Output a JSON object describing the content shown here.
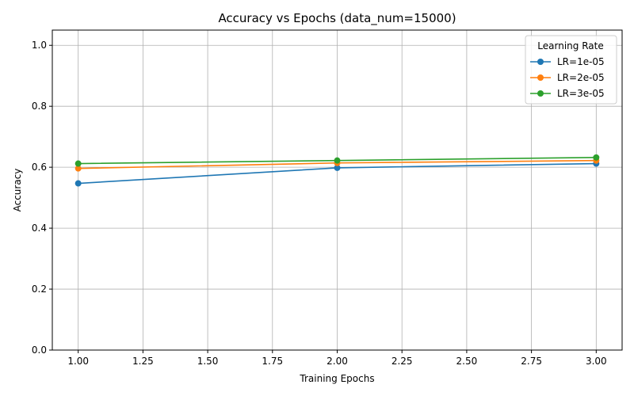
{
  "chart_data": {
    "type": "line",
    "title": "Accuracy vs Epochs (data_num=15000)",
    "xlabel": "Training Epochs",
    "ylabel": "Accuracy",
    "xlim": [
      0.9,
      3.1
    ],
    "ylim": [
      0.0,
      1.05
    ],
    "x_ticks": [
      "1.00",
      "1.25",
      "1.50",
      "1.75",
      "2.00",
      "2.25",
      "2.50",
      "2.75",
      "3.00"
    ],
    "y_ticks": [
      "0.0",
      "0.2",
      "0.4",
      "0.6",
      "0.8",
      "1.0"
    ],
    "grid": true,
    "legend": {
      "title": "Learning Rate",
      "placement": "top-right"
    },
    "x": [
      1,
      2,
      3
    ],
    "series": [
      {
        "name": "LR=1e-05",
        "color": "#1f77b4",
        "values": [
          0.547,
          0.598,
          0.612
        ]
      },
      {
        "name": "LR=2e-05",
        "color": "#ff7f0e",
        "values": [
          0.596,
          0.614,
          0.622
        ]
      },
      {
        "name": "LR=3e-05",
        "color": "#2ca02c",
        "values": [
          0.612,
          0.622,
          0.632
        ]
      }
    ]
  }
}
